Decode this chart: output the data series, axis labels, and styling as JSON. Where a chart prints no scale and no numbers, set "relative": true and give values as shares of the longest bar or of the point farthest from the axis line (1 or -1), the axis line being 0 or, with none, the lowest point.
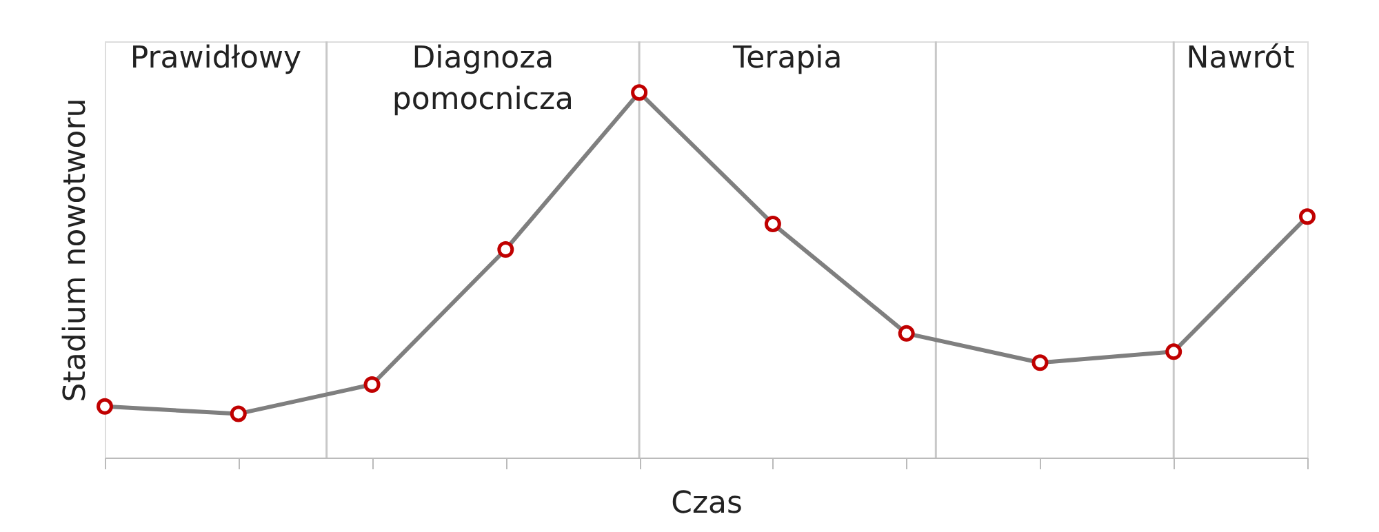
{
  "chart_data": {
    "type": "line",
    "relative": true,
    "xlabel": "Czas",
    "ylabel": "Stadium nowotworu",
    "categories": [
      null,
      null,
      null,
      null,
      null,
      null,
      null,
      null,
      null,
      null
    ],
    "series": [
      {
        "color": "#7f7f7f",
        "values": [
          0.14,
          0.12,
          0.2,
          0.57,
          1,
          0.64,
          0.34,
          0.26,
          0.29,
          0.66
        ]
      }
    ],
    "marker": "circle",
    "line_style": "solid",
    "annotations": [
      "Prawidłowy",
      "Diagnoza pomocnicza",
      "Terapia",
      "Nawrót"
    ]
  }
}
